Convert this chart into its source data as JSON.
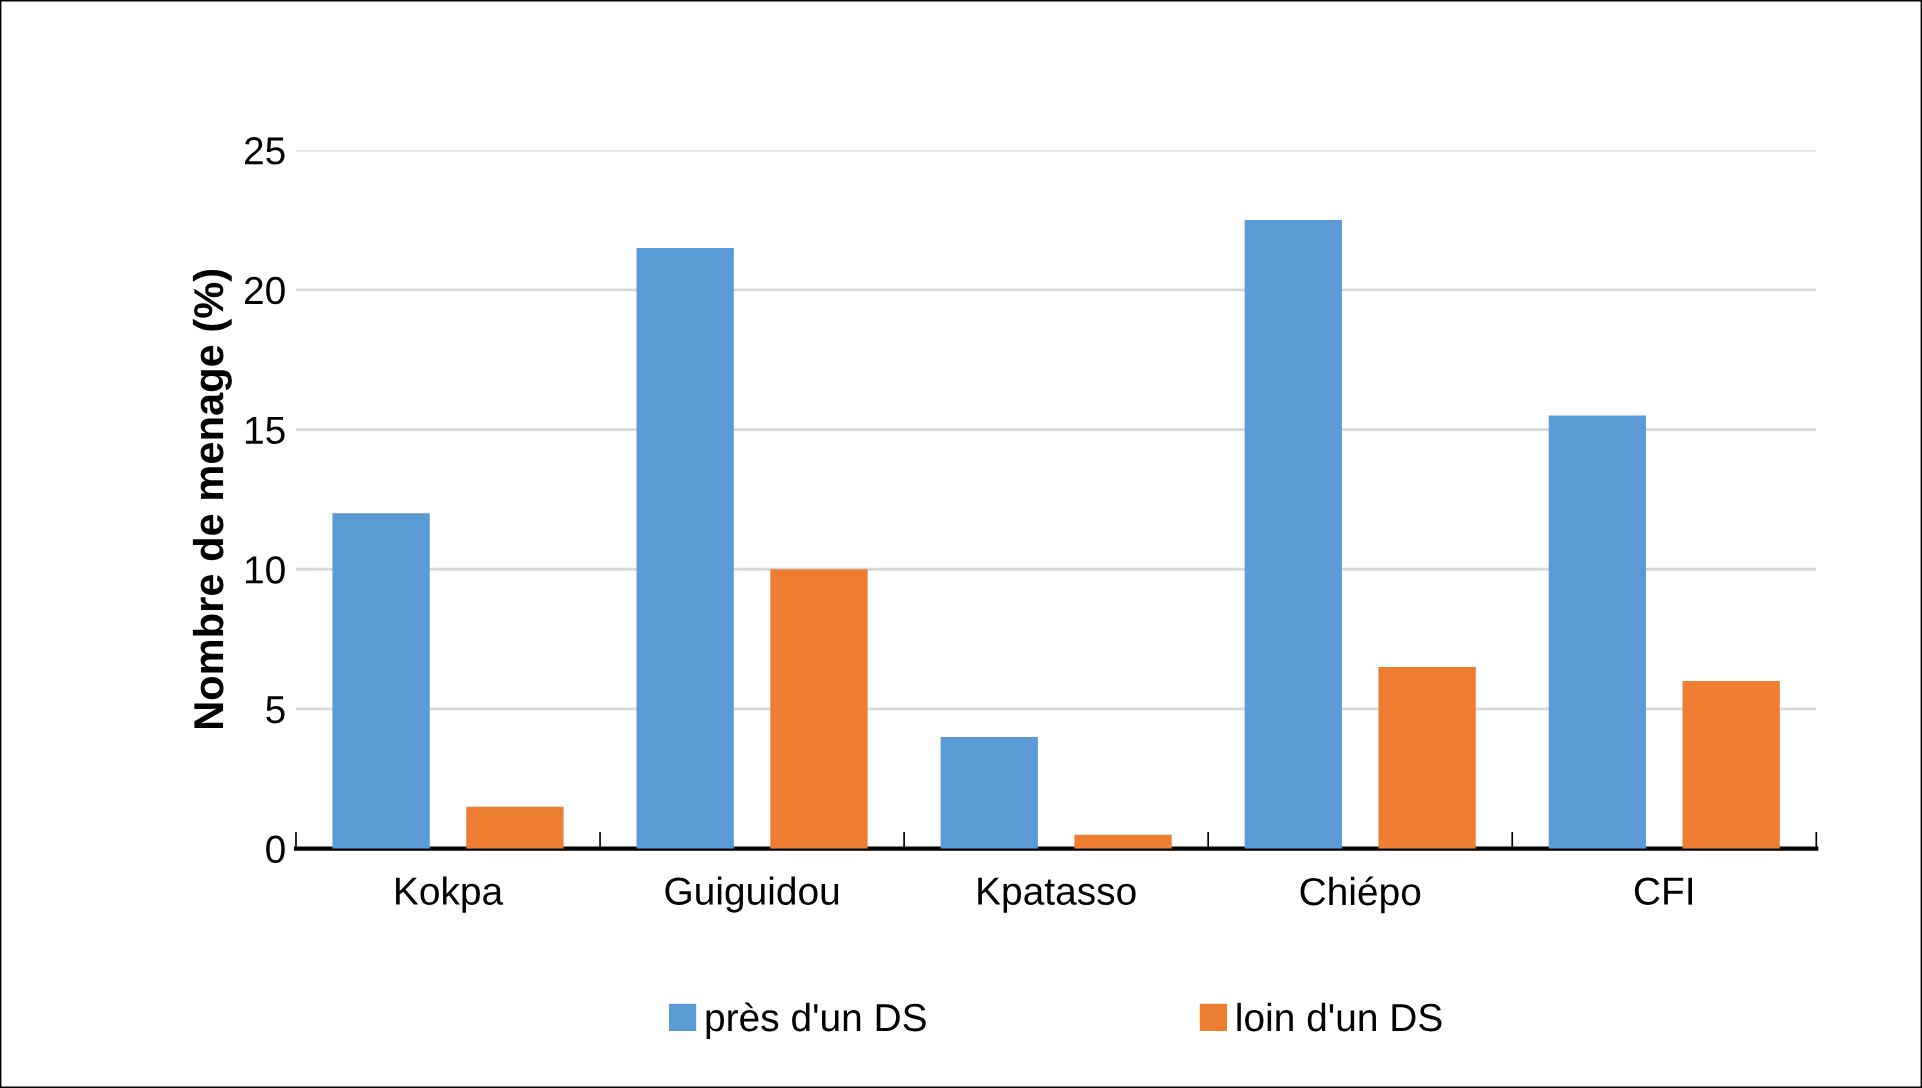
{
  "chart_data": {
    "type": "bar",
    "ylabel": "Nombre de menage (%)",
    "categories": [
      "Kokpa",
      "Guiguidou",
      "Kpatasso",
      "Chiépo",
      "CFI"
    ],
    "series": [
      {
        "name": "près d'un DS",
        "color": "#5b9bd5",
        "values": [
          12,
          21.5,
          4,
          22.5,
          15.5
        ]
      },
      {
        "name": "loin d'un DS",
        "color": "#ed7d31",
        "values": [
          1.5,
          10,
          0.5,
          6.5,
          6
        ]
      }
    ],
    "ylim": [
      0,
      25
    ],
    "yticks": [
      0,
      5,
      10,
      15,
      20,
      25
    ],
    "grid": "y",
    "legend": "bottom"
  }
}
